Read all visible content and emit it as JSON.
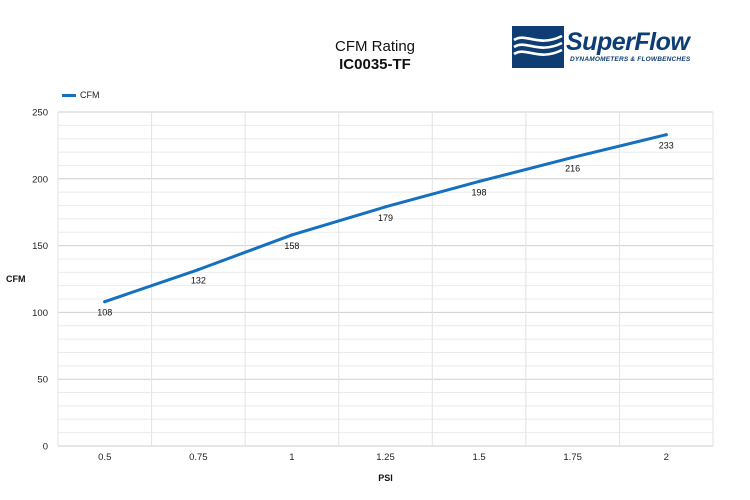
{
  "header": {
    "title": "CFM Rating",
    "subtitle": "IC0035-TF"
  },
  "logo": {
    "name": "SuperFlow",
    "tagline": "DYNAMOMETERS & FLOWBENCHES",
    "color": "#0e3d73"
  },
  "chart_data": {
    "type": "line",
    "title": "CFM Rating",
    "subtitle": "IC0035-TF",
    "xlabel": "PSI",
    "ylabel": "CFM",
    "categories": [
      "0.5",
      "0.75",
      "1",
      "1.25",
      "1.5",
      "1.75",
      "2"
    ],
    "series": [
      {
        "name": "CFM",
        "color": "#1570c0",
        "values": [
          108,
          132,
          158,
          179,
          198,
          216,
          233
        ],
        "labels": [
          "108",
          "132",
          "158",
          "179",
          "198",
          "216",
          "233"
        ]
      }
    ],
    "ylim": [
      0,
      250
    ],
    "yticks": [
      0,
      50,
      100,
      150,
      200,
      250
    ],
    "ytick_labels": [
      "0",
      "50",
      "100",
      "150",
      "200",
      "250"
    ],
    "grid": true,
    "legend": "top-left"
  }
}
